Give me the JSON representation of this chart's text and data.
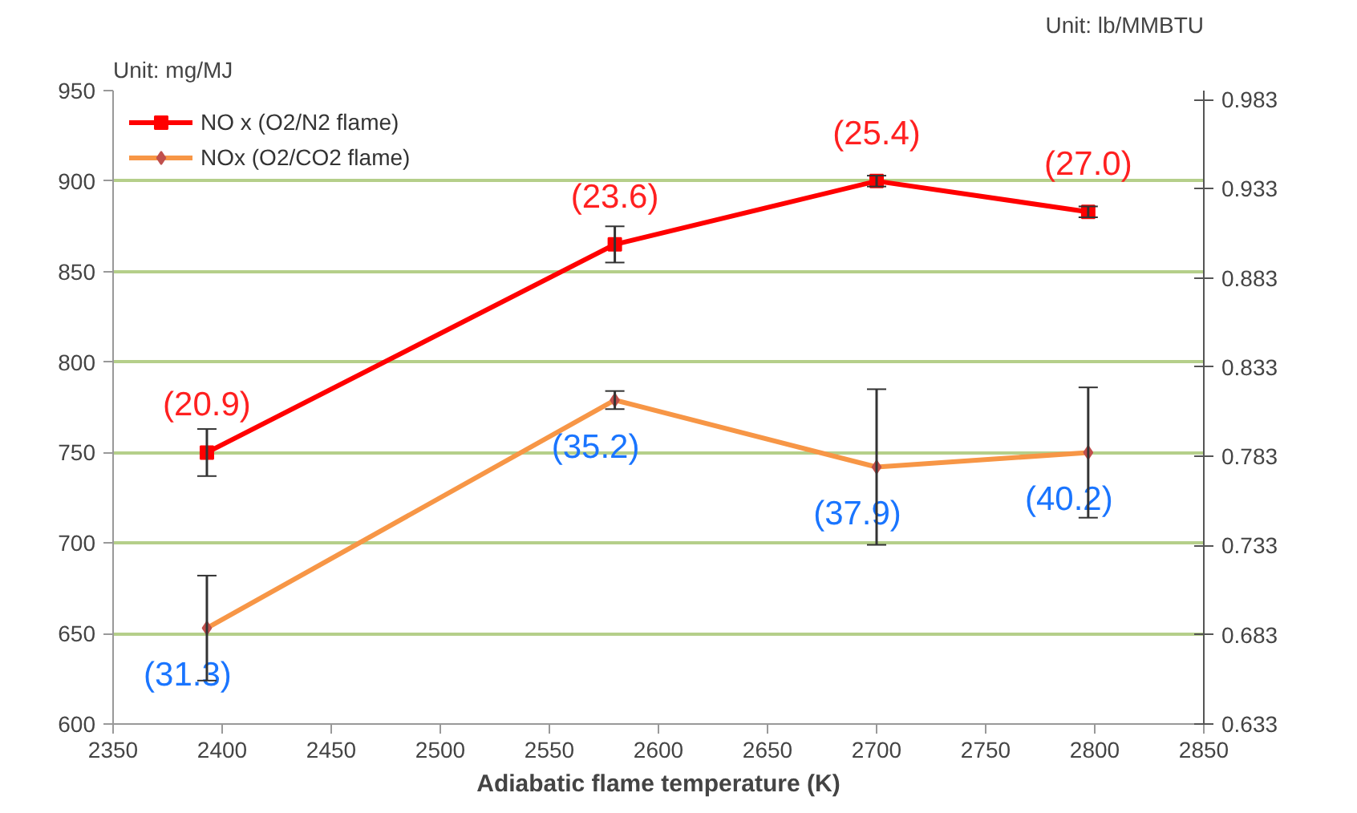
{
  "chart_data": {
    "type": "line",
    "xlabel": "Adiabatic flame temperature (K)",
    "ylabel": "Unit: mg/MJ",
    "y2label": "Unit: lb/MMBTU",
    "xlim": [
      2350,
      2850
    ],
    "xticks": [
      2350,
      2400,
      2450,
      2500,
      2550,
      2600,
      2650,
      2700,
      2750,
      2800,
      2850
    ],
    "ylim": [
      600,
      950
    ],
    "yticks": [
      600,
      650,
      700,
      750,
      800,
      850,
      900,
      950
    ],
    "y2lim": [
      0.633,
      0.988
    ],
    "y2ticks": [
      0.633,
      0.683,
      0.733,
      0.783,
      0.833,
      0.883,
      0.933,
      0.983
    ],
    "grid": "y",
    "legend": "top left",
    "line_style": "solid",
    "series": [
      {
        "name": "NO x (O2/N2 flame)",
        "color": "#ff0000",
        "marker": "square",
        "x": [
          2393,
          2580,
          2700,
          2797
        ],
        "values": [
          750,
          865,
          900,
          883
        ],
        "errors": [
          13,
          10,
          3,
          3
        ]
      },
      {
        "name": "NOx (O2/CO2 flame)",
        "color": "#f79646",
        "marker": "diamond",
        "x": [
          2393,
          2580,
          2700,
          2797
        ],
        "values": [
          653,
          779,
          742,
          750
        ],
        "errors": [
          29,
          5,
          43,
          36
        ]
      }
    ],
    "annotations": [
      {
        "text": "(20.9)",
        "x": 2393,
        "y": 750
      },
      {
        "text": "(23.6)",
        "x": 2580,
        "y": 865
      },
      {
        "text": "(25.4)",
        "x": 2700,
        "y": 900
      },
      {
        "text": "(27.0)",
        "x": 2797,
        "y": 883
      },
      {
        "text": "(31.3)",
        "x": 2393,
        "y": 653
      },
      {
        "text": "(35.2)",
        "x": 2580,
        "y": 779
      },
      {
        "text": "(37.9)",
        "x": 2700,
        "y": 742
      },
      {
        "text": "(40.2)",
        "x": 2797,
        "y": 750
      }
    ]
  }
}
